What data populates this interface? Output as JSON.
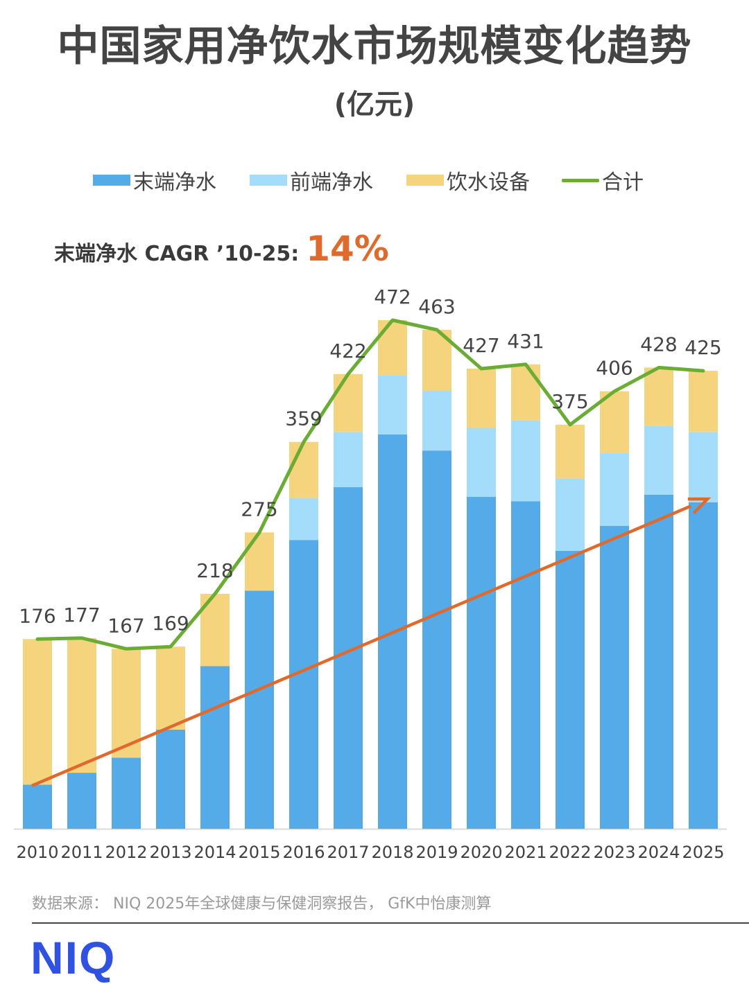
{
  "header": {
    "title": "中国家用净饮水市场规模变化趋势",
    "subtitle": "(亿元)"
  },
  "legend": {
    "items": [
      {
        "label": "末端净水",
        "color": "#55aae8",
        "kind": "box"
      },
      {
        "label": "前端净水",
        "color": "#a3ddf9",
        "kind": "box"
      },
      {
        "label": "饮水设备",
        "color": "#f5d47e",
        "kind": "box"
      },
      {
        "label": "合计",
        "color": "#6aac34",
        "kind": "line"
      }
    ]
  },
  "annotation": {
    "cagr_label": "末端净水 CAGR ’10-25:",
    "cagr_value": "14%",
    "cagr_color": "#e06a2c"
  },
  "chart_data": {
    "type": "bar",
    "stacked": true,
    "title": "中国家用净饮水市场规模变化趋势",
    "unit": "亿元",
    "categories": [
      "2010",
      "2011",
      "2012",
      "2013",
      "2014",
      "2015",
      "2016",
      "2017",
      "2018",
      "2019",
      "2020",
      "2021",
      "2022",
      "2023",
      "2024",
      "2025"
    ],
    "series": [
      {
        "name": "末端净水",
        "color": "#55aae8",
        "values": [
          41,
          52,
          66,
          92,
          151,
          221,
          268,
          317,
          366,
          351,
          308,
          304,
          258,
          281,
          310,
          303
        ]
      },
      {
        "name": "前端净水",
        "color": "#a3ddf9",
        "values": [
          0,
          0,
          0,
          0,
          0,
          0,
          39,
          51,
          55,
          56,
          64,
          75,
          67,
          68,
          64,
          65
        ]
      },
      {
        "name": "饮水设备",
        "color": "#f5d47e",
        "values": [
          135,
          125,
          101,
          77,
          67,
          54,
          52,
          54,
          51,
          56,
          55,
          52,
          50,
          57,
          54,
          57
        ]
      }
    ],
    "total": {
      "name": "合计",
      "color": "#6aac34",
      "values": [
        176,
        177,
        167,
        169,
        218,
        275,
        359,
        422,
        472,
        463,
        427,
        431,
        375,
        406,
        428,
        425
      ]
    },
    "total_labels": [
      "176",
      "177",
      "167",
      "169",
      "218",
      "275",
      "359",
      "422",
      "472",
      "463",
      "427",
      "431",
      "375",
      "406",
      "428",
      "425"
    ],
    "trend_arrow": {
      "label": "末端净水 CAGR ’10-25",
      "color": "#e06a2c",
      "from": {
        "category": "2010",
        "value": 40
      },
      "to": {
        "category": "2025",
        "value": 306
      }
    },
    "ylim": [
      0,
      472
    ]
  },
  "footer": {
    "source": "数据来源：  NIQ 2025年全球健康与保健洞察报告，  GfK中怡康测算",
    "logo": "NIQ"
  }
}
